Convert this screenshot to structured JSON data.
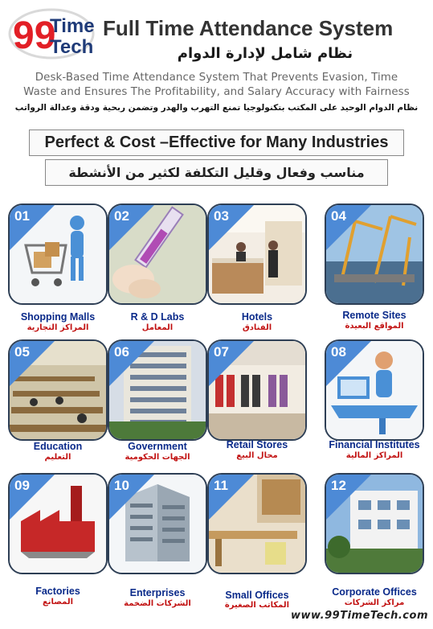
{
  "logo": {
    "num": "99",
    "line1": "Time",
    "line2": "Tech"
  },
  "header": {
    "title": "Full Time Attendance System",
    "title_ar": "نظام شامل لإدارة الدوام",
    "desc_line1": "Desk-Based Time Attendance System That Prevents Evasion, Time",
    "desc_line2": "Waste and Ensures The Profitability, and Salary Accuracy with Fairness",
    "desc_ar": "نظام الدوام الوحيد على المكتب بتكنولوجيا تمنع التهرب والهدر وتضمن ربحية ودقة وعدالة الرواتب"
  },
  "banner": {
    "en": "Perfect & Cost –Effective for Many Industries",
    "ar": "مناسب وفعال وقليل التكلفة  لكثير من الأنشطة"
  },
  "industries": [
    {
      "num": "01",
      "en": "Shopping Malls",
      "ar": "المراكز التجارية",
      "icon": "shopping-cart-icon"
    },
    {
      "num": "02",
      "en": "R & D Labs",
      "ar": "المعامل",
      "icon": "test-tube-icon"
    },
    {
      "num": "03",
      "en": "Hotels",
      "ar": "الفنادق",
      "icon": "hotel-reception-icon"
    },
    {
      "num": "04",
      "en": "Remote Sites",
      "ar": "المواقع البعيدة",
      "icon": "cranes-icon"
    },
    {
      "num": "05",
      "en": "Education",
      "ar": "التعليم",
      "icon": "classroom-icon"
    },
    {
      "num": "06",
      "en": "Government",
      "ar": "الجهات الحكومية",
      "icon": "government-building-icon"
    },
    {
      "num": "07",
      "en": "Retail Stores",
      "ar": "محال البيع",
      "icon": "retail-store-icon"
    },
    {
      "num": "08",
      "en": "Financial Institutes",
      "ar": "المراكز المالية",
      "icon": "desk-worker-icon"
    },
    {
      "num": "09",
      "en": "Factories",
      "ar": "المصانع",
      "icon": "factory-icon"
    },
    {
      "num": "10",
      "en": "Enterprises",
      "ar": "الشركات الضخمة",
      "icon": "enterprise-building-icon"
    },
    {
      "num": "11",
      "en": "Small Offices",
      "ar": "المكاتب الصغيرة",
      "icon": "office-desk-icon"
    },
    {
      "num": "12",
      "en": "Corporate Offices",
      "ar": "مراكز الشركات",
      "icon": "corporate-building-icon"
    }
  ],
  "footer": {
    "url": "www.99TimeTech.com"
  }
}
